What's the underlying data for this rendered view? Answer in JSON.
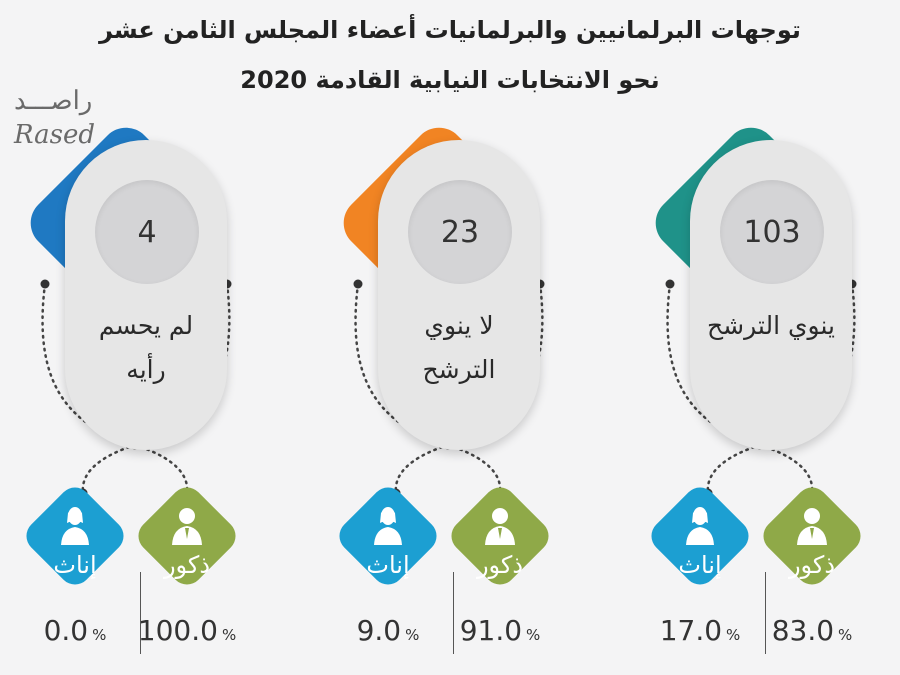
{
  "title_line1": "توجهات البرلمانيين والبرلمانيات أعضاء المجلس الثامن عشر",
  "title_line2": "نحو الانتخابات النيابية القادمة 2020",
  "logo": {
    "arabic": "راصـــد",
    "latin": "Rased"
  },
  "colors": {
    "teal": "#1f9289",
    "orange": "#f18423",
    "blue": "#1f79c2",
    "female": "#1c9fd2",
    "male": "#8fa948"
  },
  "gender_labels": {
    "female": "إناث",
    "male": "ذكور"
  },
  "percent_symbol": "%",
  "chart_data": {
    "type": "table",
    "title": "توجهات البرلمانيين والبرلمانيات أعضاء المجلس الثامن عشر نحو الانتخابات النيابية القادمة 2020",
    "categories": [
      "يو ي الترشح",
      "لا ينوي الترشح",
      "لم يحسم رأيه"
    ],
    "groups": [
      {
        "label_lines": [
          "ينوي الترشح"
        ],
        "count": "103",
        "color": "#1f9289",
        "male_pct": "83.0",
        "female_pct": "17.0"
      },
      {
        "label_lines": [
          "لا ينوي",
          "الترشح"
        ],
        "count": "23",
        "color": "#f18423",
        "male_pct": "91.0",
        "female_pct": "9.0"
      },
      {
        "label_lines": [
          "لم يحسم",
          "رأيه"
        ],
        "count": "4",
        "color": "#1f79c2",
        "male_pct": "100.0",
        "female_pct": "0.0"
      }
    ]
  }
}
